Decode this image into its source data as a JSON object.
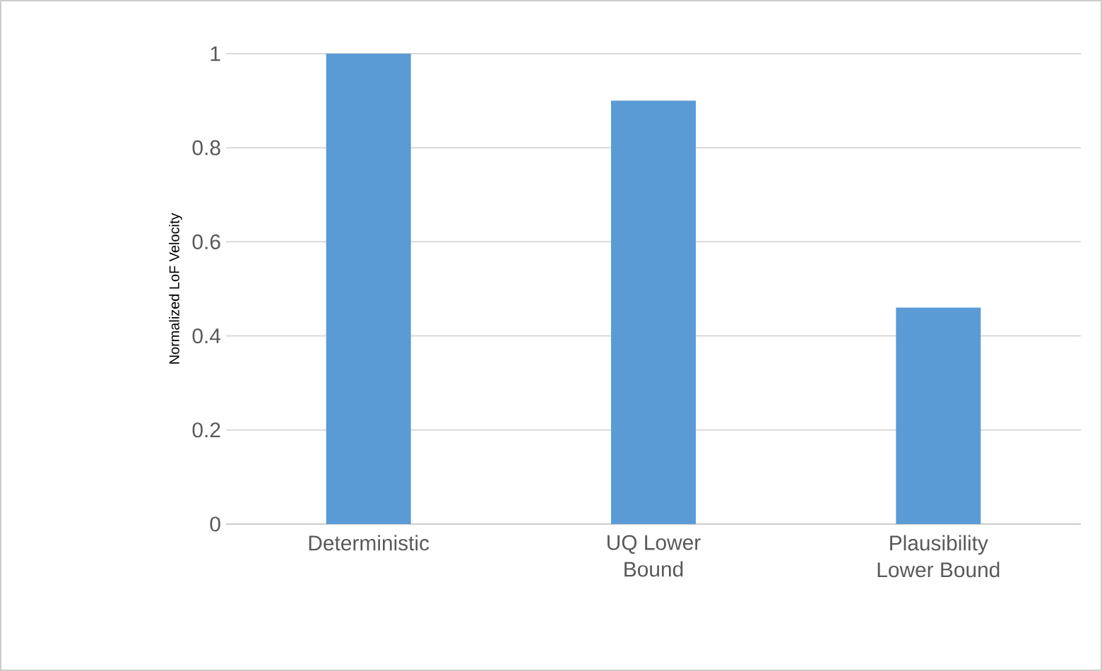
{
  "chart_data": {
    "type": "bar",
    "ylabel": "Normalized LoF Velocity",
    "categories": [
      "Deterministic",
      "UQ Lower\nBound",
      "Plausibility\nLower Bound"
    ],
    "values": [
      1,
      0.9,
      0.46
    ],
    "color": "#5b9bd5",
    "ylim": [
      0,
      1
    ],
    "yticks": [
      0,
      0.2,
      0.4,
      0.6,
      0.8,
      1
    ],
    "grid": "y"
  }
}
